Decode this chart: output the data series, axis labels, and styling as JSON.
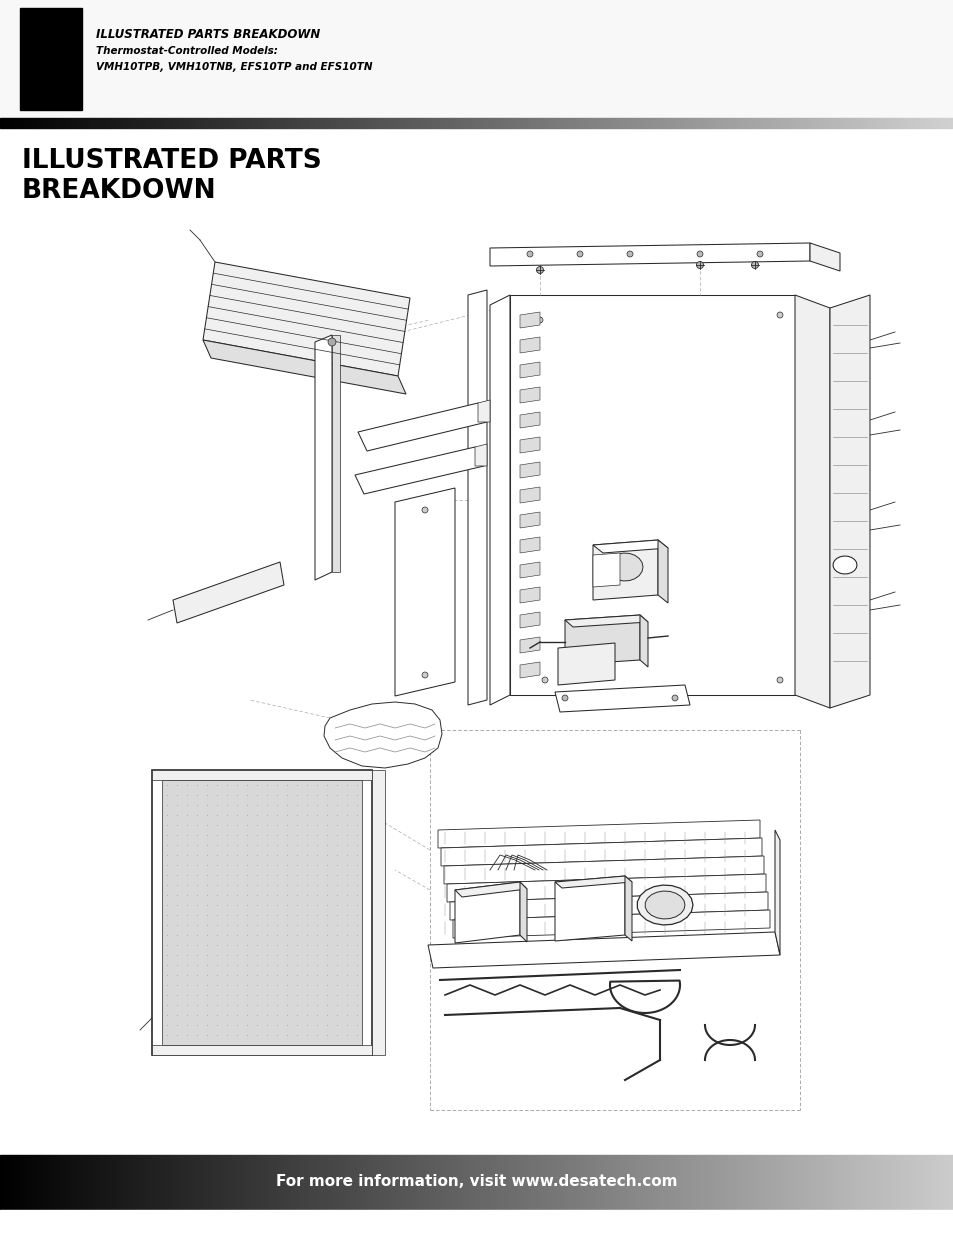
{
  "page_bg": "#ffffff",
  "header_bg": "#000000",
  "header_text_line1": "ILLUSTRATED PARTS BREAKDOWN",
  "header_text_line2": "Thermostat-Controlled Models:",
  "header_text_line3": "VMH10TPB, VMH10TNB, EFS10TP and EFS10TN",
  "section_title_line1": "ILLUSTRATED PARTS",
  "section_title_line2": "BREAKDOWN",
  "footer_text": "For more information, visit www.desatech.com",
  "figure_width": 9.54,
  "figure_height": 12.35
}
